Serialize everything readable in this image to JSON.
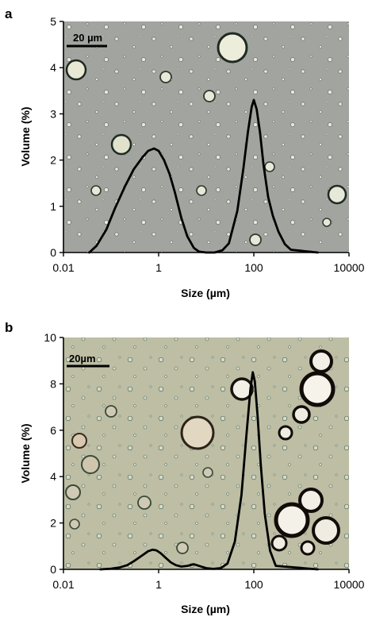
{
  "chart_data": [
    {
      "panel": "a",
      "type": "area",
      "xscale": "log",
      "xlim": [
        0.01,
        10000
      ],
      "ylim": [
        0,
        5
      ],
      "xticks": [
        0.01,
        1,
        100,
        10000
      ],
      "xtick_labels": [
        "0.01",
        "1",
        "100",
        "10000"
      ],
      "yticks": [
        0,
        1,
        2,
        3,
        4,
        5
      ],
      "ytick_labels": [
        "0",
        "1",
        "2",
        "3",
        "4",
        "5"
      ],
      "xlabel": "Size (µm)",
      "ylabel": "Volume (%)",
      "grid": false,
      "background": "micrograph",
      "scale_bar": "20 µm",
      "series": [
        {
          "x": [
            0.035,
            0.05,
            0.08,
            0.12,
            0.2,
            0.3,
            0.45,
            0.6,
            0.8,
            1.0,
            1.3,
            1.7,
            2.2,
            3.0,
            4.0,
            5.5,
            7,
            10,
            15,
            22,
            30,
            45,
            60,
            75,
            90,
            100,
            115,
            135,
            160,
            200,
            250,
            330,
            450,
            600,
            2200
          ],
          "y": [
            0,
            0.15,
            0.5,
            0.95,
            1.45,
            1.8,
            2.05,
            2.2,
            2.25,
            2.2,
            2.0,
            1.7,
            1.3,
            0.75,
            0.35,
            0.1,
            0.02,
            0,
            0,
            0.05,
            0.2,
            0.9,
            1.8,
            2.6,
            3.15,
            3.3,
            3.1,
            2.6,
            1.9,
            1.2,
            0.8,
            0.45,
            0.18,
            0.06,
            0
          ]
        }
      ]
    },
    {
      "panel": "b",
      "type": "area",
      "xscale": "log",
      "xlim": [
        0.01,
        10000
      ],
      "ylim": [
        0,
        10
      ],
      "xticks": [
        0.01,
        1,
        100,
        10000
      ],
      "xtick_labels": [
        "0.01",
        "1",
        "100",
        "10000"
      ],
      "yticks": [
        0,
        2,
        4,
        6,
        8,
        10
      ],
      "ytick_labels": [
        "0",
        "2",
        "4",
        "6",
        "8",
        "10"
      ],
      "xlabel": "Size (µm)",
      "ylabel": "Volume (%)",
      "grid": false,
      "background": "micrograph",
      "scale_bar": "20µm",
      "series": [
        {
          "x": [
            0.06,
            0.1,
            0.15,
            0.22,
            0.3,
            0.45,
            0.6,
            0.75,
            0.9,
            1.1,
            1.4,
            1.8,
            2.3,
            3.0,
            4.0,
            5.5,
            7.0,
            10,
            14,
            20,
            28,
            40,
            55,
            70,
            85,
            95,
            105,
            120,
            140,
            170,
            220,
            290,
            2200
          ],
          "y": [
            0,
            0.03,
            0.08,
            0.18,
            0.35,
            0.6,
            0.78,
            0.85,
            0.82,
            0.7,
            0.5,
            0.3,
            0.18,
            0.12,
            0.15,
            0.22,
            0.15,
            0.05,
            0.02,
            0.05,
            0.25,
            1.2,
            3.2,
            5.8,
            7.8,
            8.5,
            8.1,
            6.6,
            4.5,
            2.4,
            0.8,
            0.15,
            0
          ]
        }
      ]
    }
  ]
}
